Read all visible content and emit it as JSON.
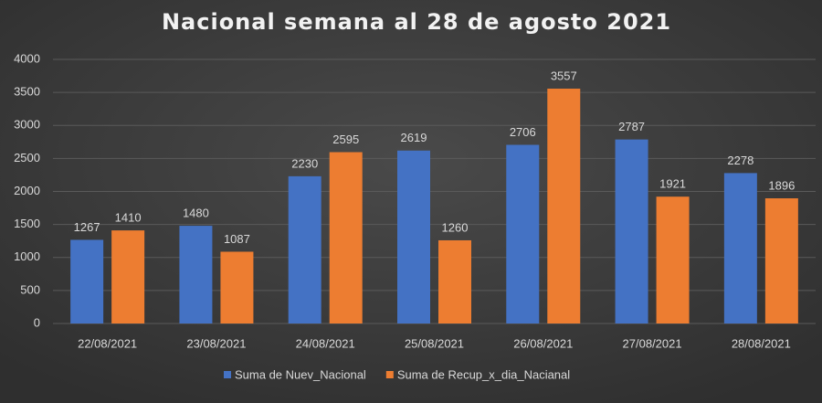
{
  "chart_data": {
    "type": "bar",
    "title": "Nacional semana al 28 de agosto 2021",
    "categories": [
      "22/08/2021",
      "23/08/2021",
      "24/08/2021",
      "25/08/2021",
      "26/08/2021",
      "27/08/2021",
      "28/08/2021"
    ],
    "series": [
      {
        "name": "Suma de Nuev_Nacional",
        "color": "#4472c4",
        "values": [
          1267,
          1480,
          2230,
          2619,
          2706,
          2787,
          2278
        ]
      },
      {
        "name": "Suma de Recup_x_dia_Nacianal",
        "color": "#ed7d31",
        "values": [
          1410,
          1087,
          2595,
          1260,
          3557,
          1921,
          1896
        ]
      }
    ],
    "ylim": [
      0,
      4000
    ],
    "yticks": [
      0,
      500,
      1000,
      1500,
      2000,
      2500,
      3000,
      3500,
      4000
    ],
    "grid": true,
    "legend": "bottom"
  }
}
